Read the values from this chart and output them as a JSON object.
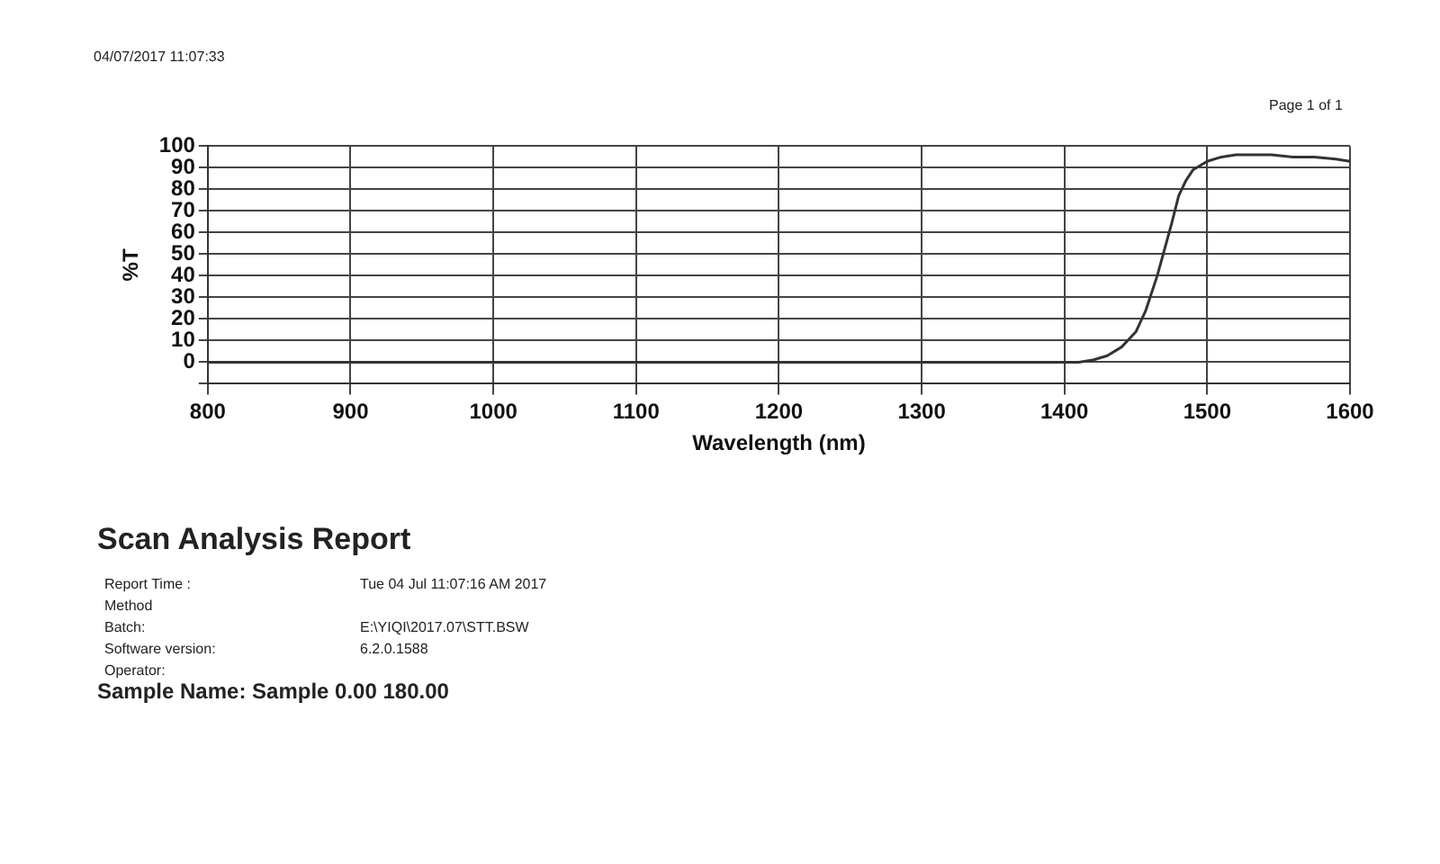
{
  "chart_data": {
    "type": "line",
    "title": "Scan Analysis Report",
    "xlabel": "Wavelength (nm)",
    "ylabel": "%T",
    "annotations": [
      "04/07/2017 11:07:33",
      "Page 1 of 1",
      "Report Time :",
      "Tue 04 Jul 11:07:16 AM 2017",
      "Method",
      "Batch:",
      "E:\\YIQI\\2017.07\\STT.BSW",
      "Software version:",
      "6.2.0.1588",
      "Operator:",
      "Sample Name: Sample 0.00  180.00"
    ],
    "x": [
      800,
      900,
      1000,
      1100,
      1200,
      1300,
      1400,
      1410,
      1420,
      1430,
      1440,
      1450,
      1457,
      1465,
      1470,
      1475,
      1480,
      1485,
      1490,
      1500,
      1510,
      1520,
      1530,
      1545,
      1560,
      1575,
      1590,
      1600
    ],
    "series": [
      {
        "color": "#333333",
        "values": [
          0,
          0,
          0,
          0,
          0,
          0,
          0,
          0,
          1,
          3,
          7,
          14,
          24,
          40,
          52,
          64,
          77,
          84,
          89,
          93,
          95,
          96,
          96,
          96,
          95,
          95,
          94,
          93
        ]
      }
    ],
    "xlim": [
      800,
      1600
    ],
    "xticks": [
      800,
      900,
      1000,
      1100,
      1200,
      1300,
      1400,
      1500,
      1600
    ],
    "ylim": [
      -10,
      100
    ],
    "yticks": [
      {
        "value": -10,
        "label": null
      },
      0,
      10,
      20,
      30,
      40,
      50,
      60,
      70,
      80,
      90,
      100
    ],
    "grid": true,
    "legend": false,
    "marker": "none",
    "line_style": "solid"
  }
}
